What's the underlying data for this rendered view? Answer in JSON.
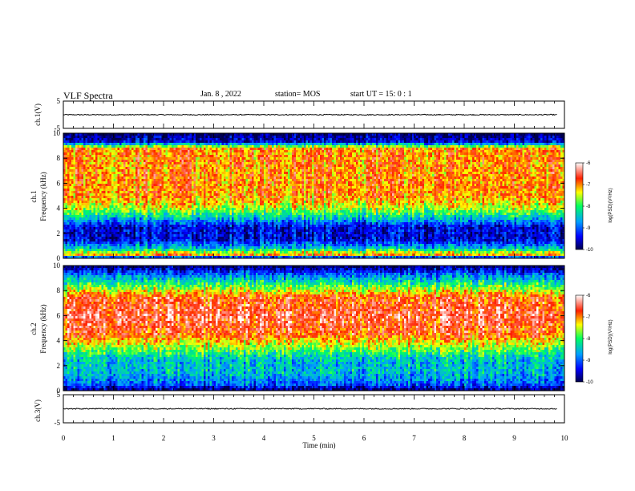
{
  "header": {
    "title": "VLF Spectra",
    "date": "Jan. 8 , 2022",
    "station": "station= MOS",
    "start": "start UT = 15: 0 : 1"
  },
  "chart_data": [
    {
      "type": "line",
      "ylabel": "ch.1(V)",
      "y_ticks": [
        "5",
        "-5"
      ],
      "ylim": [
        -5,
        5
      ],
      "xlim": [
        0,
        10
      ],
      "series": [
        {
          "values_description_free": true,
          "level": 0
        }
      ]
    },
    {
      "type": "heatmap",
      "ylabel": "ch.1\nFrequency (kHz)",
      "ylabel_line1": "ch.1",
      "ylabel_line2": "Frequency (kHz)",
      "ylim": [
        0,
        10
      ],
      "y_ticks": [
        "0",
        "2",
        "4",
        "6",
        "8",
        "10"
      ],
      "xlim": [
        0,
        10
      ],
      "colorbar": {
        "label": "log(PSD)(V²/Hz)",
        "range": [
          -10,
          -6
        ],
        "ticks": [
          "-6",
          "-7",
          "-8",
          "-9",
          "-10"
        ]
      },
      "profile_khz_to_log_psd": [
        [
          0,
          -10
        ],
        [
          0.3,
          -7
        ],
        [
          0.8,
          -8.5
        ],
        [
          1.5,
          -9.5
        ],
        [
          2.5,
          -9.5
        ],
        [
          3.2,
          -8.5
        ],
        [
          4,
          -7.5
        ],
        [
          5,
          -7
        ],
        [
          8.8,
          -7
        ],
        [
          9.3,
          -9.5
        ],
        [
          10,
          -10
        ]
      ]
    },
    {
      "type": "heatmap",
      "ylabel": "ch.2\nFrequency (kHz)",
      "ylabel_line1": "ch.2",
      "ylabel_line2": "Frequency (kHz)",
      "ylim": [
        0,
        10
      ],
      "y_ticks": [
        "0",
        "2",
        "4",
        "6",
        "8",
        "10"
      ],
      "xlim": [
        0,
        10
      ],
      "colorbar": {
        "label": "log(PSD)(V²/Hz)",
        "range": [
          -10,
          -6
        ],
        "ticks": [
          "-6",
          "-7",
          "-8",
          "-9",
          "-10"
        ]
      },
      "profile_khz_to_log_psd": [
        [
          0,
          -10
        ],
        [
          0.5,
          -9
        ],
        [
          1.5,
          -8.5
        ],
        [
          2.5,
          -8.5
        ],
        [
          3.5,
          -7.6
        ],
        [
          4.5,
          -6.8
        ],
        [
          6,
          -6.5
        ],
        [
          7.5,
          -6.8
        ],
        [
          8.3,
          -7.8
        ],
        [
          9.2,
          -8.8
        ],
        [
          10,
          -10
        ]
      ]
    },
    {
      "type": "line",
      "ylabel": "ch.3(V)",
      "y_ticks": [
        "5",
        "-5"
      ],
      "ylim": [
        -5,
        5
      ],
      "xlim": [
        0,
        10
      ],
      "xlabel": "Time (min)",
      "x_ticks": [
        "0",
        "1",
        "2",
        "3",
        "4",
        "5",
        "6",
        "7",
        "8",
        "9",
        "10"
      ],
      "series": [
        {
          "level": 0
        }
      ]
    }
  ],
  "colormap_stops": [
    "#00004a",
    "#0000ff",
    "#00a0ff",
    "#00ff60",
    "#ffff00",
    "#ff2000",
    "#ffffff"
  ]
}
